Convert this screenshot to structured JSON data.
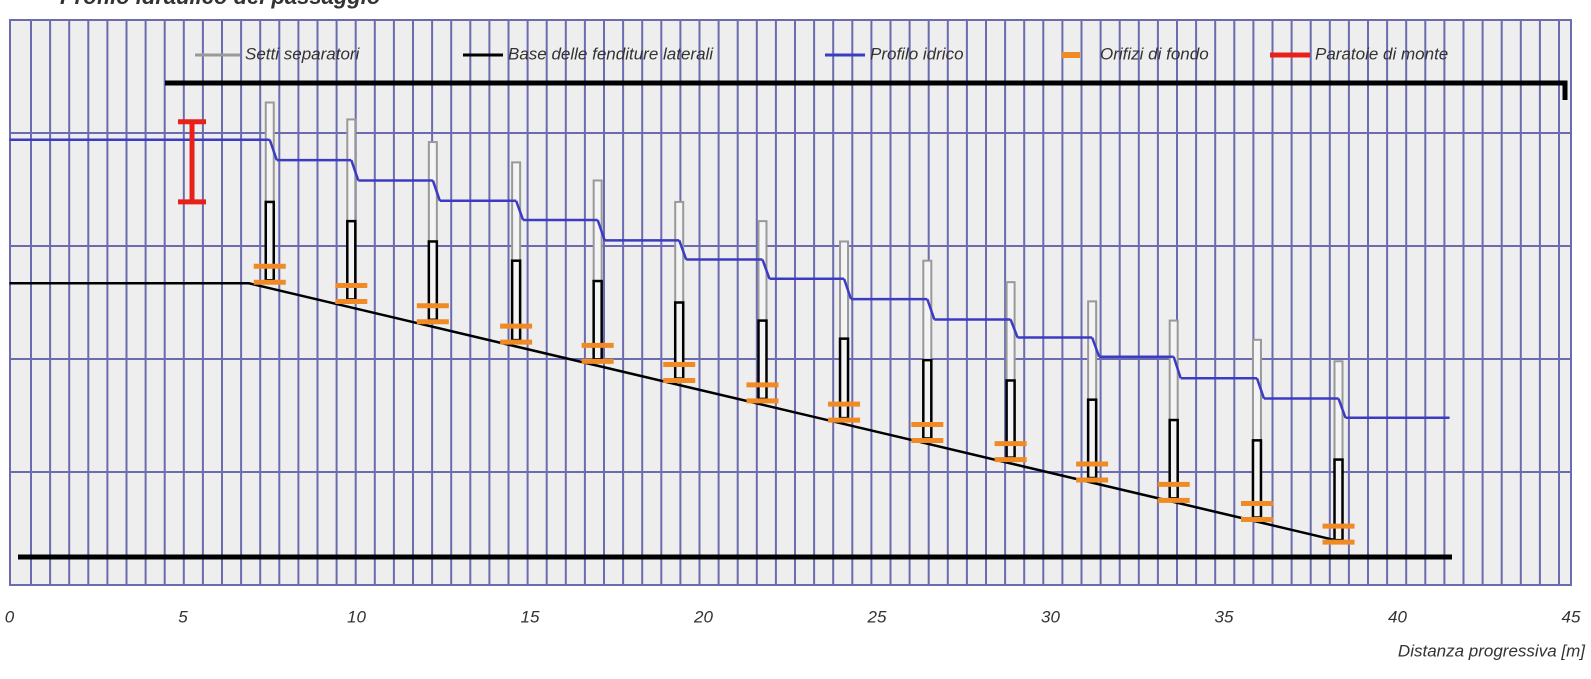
{
  "chart_data": {
    "type": "fishway-profile",
    "title": "Profilo idraulico del passaggio",
    "x_label": "Distanza progressiva [m]",
    "xlim": [
      0,
      45
    ],
    "xticks": [
      0,
      5,
      10,
      15,
      20,
      25,
      30,
      35,
      40,
      45
    ],
    "ylim": [
      0,
      5
    ],
    "ygrid": [
      1,
      2,
      3,
      4
    ],
    "septa_x": [
      7.5,
      9.85,
      12.2,
      14.6,
      16.95,
      19.3,
      21.7,
      24.05,
      26.45,
      28.85,
      31.2,
      33.55,
      35.95,
      38.3
    ],
    "septa": {
      "name": "Setti separatori",
      "color": "#999999",
      "values": [
        4.27,
        4.12,
        3.92,
        3.74,
        3.58,
        3.39,
        3.22,
        3.04,
        2.87,
        2.68,
        2.51,
        2.34,
        2.17,
        1.98
      ]
    },
    "slot_tops": [
      3.39,
      3.22,
      3.04,
      2.87,
      2.69,
      2.5,
      2.34,
      2.18,
      1.99,
      1.81,
      1.64,
      1.46,
      1.28,
      1.11
    ],
    "base": {
      "name": "Base delle fenditure laterali",
      "color": "#000000",
      "x": [
        0,
        6.9,
        38.3
      ],
      "values": [
        2.67,
        2.67,
        0.39
      ]
    },
    "water": {
      "name": "Profilo idrico",
      "color": "#3b3bc4",
      "values": [
        3.94,
        3.76,
        3.58,
        3.4,
        3.23,
        3.05,
        2.88,
        2.71,
        2.53,
        2.35,
        2.19,
        2.02,
        1.83,
        1.65,
        1.48
      ],
      "end_x": 41.5
    },
    "orifices": {
      "name": "Orifizi di fondo",
      "color": "#f08a24",
      "values": [
        2.75,
        2.58,
        2.4,
        2.22,
        2.05,
        1.88,
        1.7,
        1.53,
        1.35,
        1.18,
        1.0,
        0.82,
        0.65,
        0.45
      ]
    },
    "gate": {
      "name": "Paratoie di monte",
      "color": "#e8201a",
      "x": 5.26,
      "low": 3.39,
      "high": 4.1
    }
  }
}
